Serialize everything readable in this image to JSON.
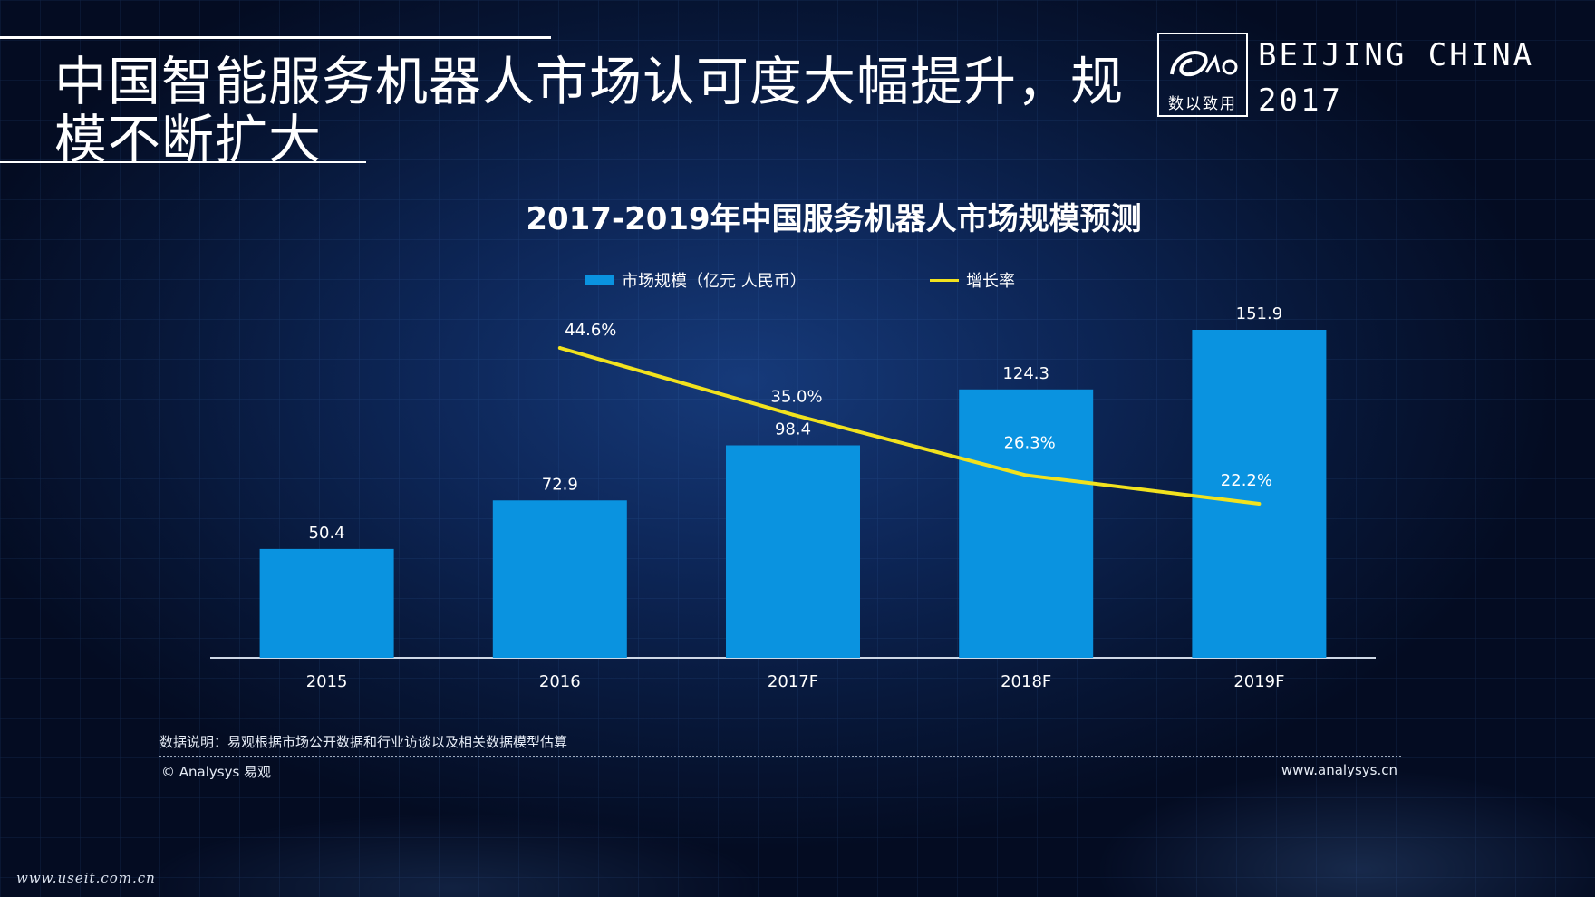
{
  "header": {
    "title": "中国智能服务机器人市场认可度大幅提升，规模不断扩大",
    "logo_text": "数以致用",
    "event_line1": "BEIJING CHINA",
    "event_line2": "2017"
  },
  "colors": {
    "bar": "#0a93e0",
    "line": "#f2e21e",
    "axis": "#cfd8e6"
  },
  "chart_data": {
    "type": "bar",
    "title": "2017-2019年中国服务机器人市场规模预测",
    "categories": [
      "2015",
      "2016",
      "2017F",
      "2018F",
      "2019F"
    ],
    "series": [
      {
        "name": "市场规模（亿元 人民币）",
        "type": "bar",
        "values": [
          50.4,
          72.9,
          98.4,
          124.3,
          151.9
        ],
        "labels": [
          "50.4",
          "72.9",
          "98.4",
          "124.3",
          "151.9"
        ]
      },
      {
        "name": "增长率",
        "type": "line",
        "values": [
          null,
          44.6,
          35.0,
          26.3,
          22.2
        ],
        "labels": [
          "",
          "44.6%",
          "35.0%",
          "26.3%",
          "22.2%"
        ]
      }
    ],
    "ylim": [
      0,
      151.9
    ],
    "y2lim": [
      0,
      60
    ],
    "grid": false,
    "legend_position": "top"
  },
  "footer": {
    "note": "数据说明：易观根据市场公开数据和行业访谈以及相关数据模型估算",
    "copyright": "© Analysys 易观",
    "url": "www.analysys.cn",
    "watermark": "www.useit.com.cn"
  }
}
